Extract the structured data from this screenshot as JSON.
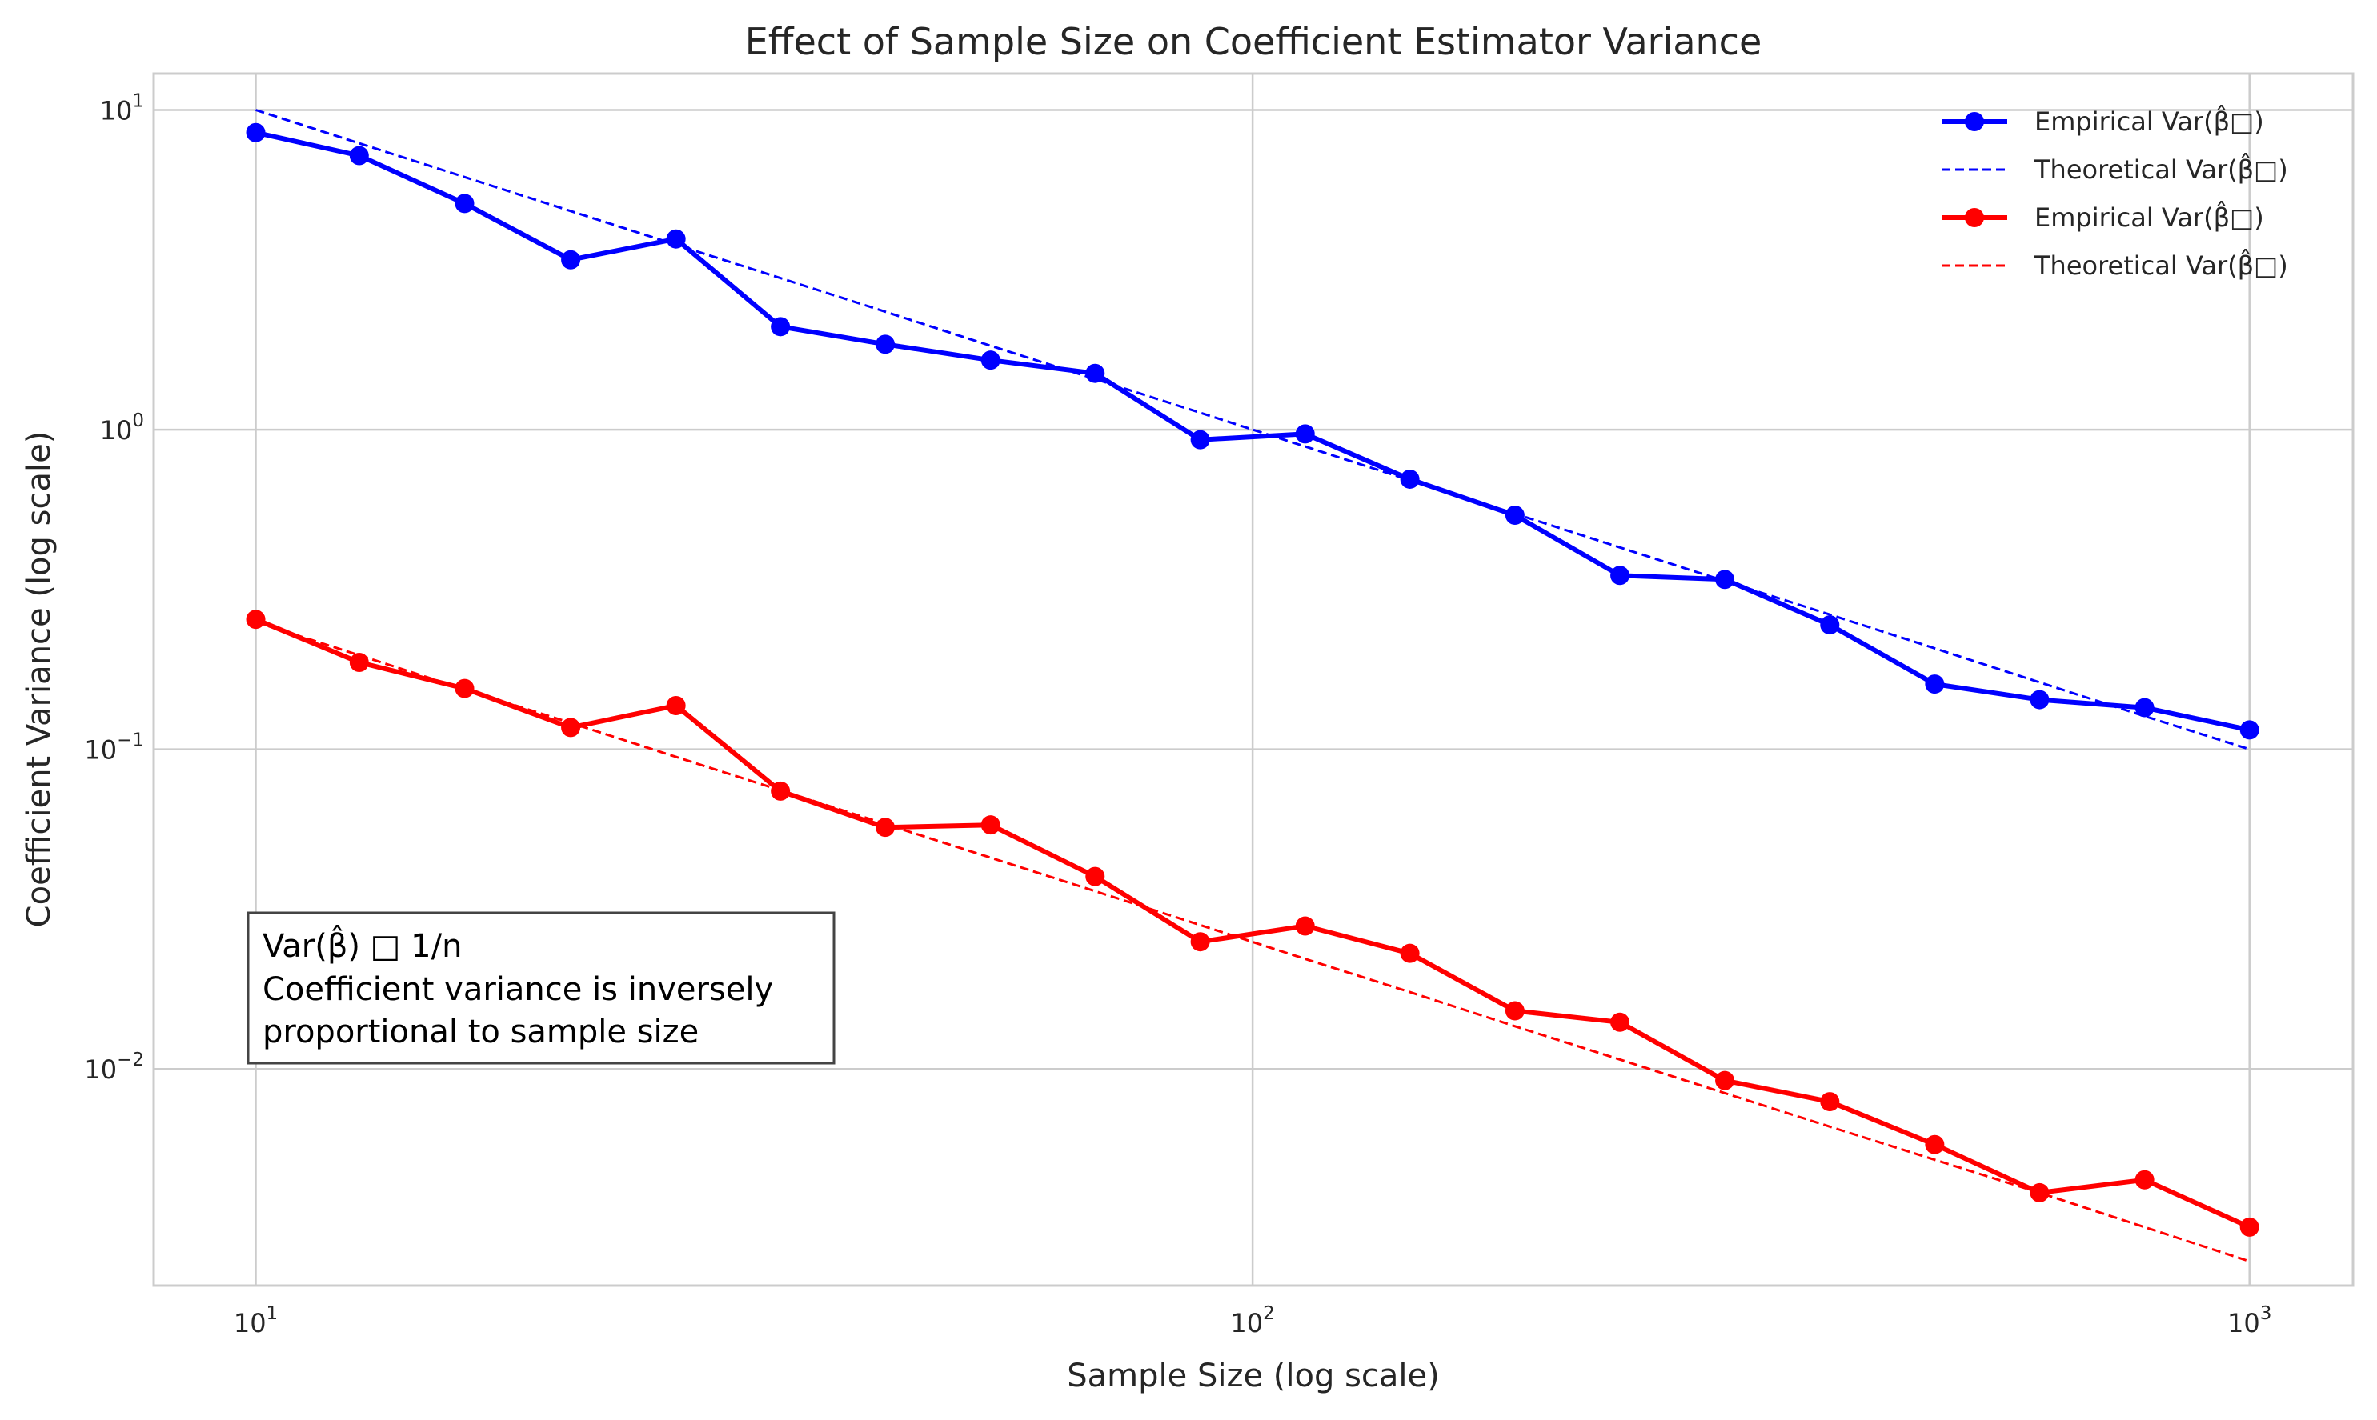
{
  "chart_data": {
    "type": "line",
    "title": "Effect of Sample Size on Coefficient Estimator Variance",
    "xlabel": "Sample Size (log scale)",
    "ylabel": "Coefficient Variance (log scale)",
    "xscale": "log",
    "yscale": "log",
    "xlim": [
      7.9,
      1270
    ],
    "ylim": [
      0.0021,
      13.0
    ],
    "x_ticks": [
      {
        "value": 10,
        "base": "10",
        "exp": "1"
      },
      {
        "value": 100,
        "base": "10",
        "exp": "2"
      },
      {
        "value": 1000,
        "base": "10",
        "exp": "3"
      }
    ],
    "y_ticks": [
      {
        "value": 10,
        "base": "10",
        "exp": "1"
      },
      {
        "value": 1,
        "base": "10",
        "exp": "0"
      },
      {
        "value": 0.1,
        "base": "10",
        "exp": "−1"
      },
      {
        "value": 0.01,
        "base": "10",
        "exp": "−2"
      }
    ],
    "grid": true,
    "legend_position": "top-right",
    "x": [
      10,
      12.7,
      16.2,
      20.7,
      26.4,
      33.6,
      42.8,
      54.6,
      69.5,
      88.6,
      112.9,
      143.8,
      183.3,
      233.6,
      297.6,
      379.3,
      483.3,
      615.8,
      784.8,
      1000
    ],
    "series": [
      {
        "name": "Empirical Var(β̂□)",
        "color": "#0000ff",
        "style": "solid-marker",
        "values": [
          8.5,
          7.2,
          5.1,
          3.4,
          3.95,
          2.1,
          1.85,
          1.65,
          1.5,
          0.93,
          0.97,
          0.7,
          0.54,
          0.35,
          0.34,
          0.245,
          0.16,
          0.143,
          0.135,
          0.115
        ]
      },
      {
        "name": "Theoretical Var(β̂□)",
        "color": "#0000ff",
        "style": "dashed",
        "values": [
          10.0,
          7.87,
          6.17,
          4.83,
          3.79,
          2.98,
          2.34,
          1.83,
          1.44,
          1.13,
          0.886,
          0.695,
          0.546,
          0.428,
          0.336,
          0.264,
          0.207,
          0.162,
          0.127,
          0.1
        ]
      },
      {
        "name": "Empirical Var(β̂□)",
        "color": "#ff0000",
        "style": "solid-marker",
        "values": [
          0.255,
          0.187,
          0.155,
          0.117,
          0.137,
          0.074,
          0.057,
          0.058,
          0.04,
          0.025,
          0.028,
          0.023,
          0.0152,
          0.014,
          0.0092,
          0.0079,
          0.0058,
          0.0041,
          0.0045,
          0.0032
        ]
      },
      {
        "name": "Theoretical Var(β̂□)",
        "color": "#ff0000",
        "style": "dashed",
        "values": [
          0.25,
          0.197,
          0.154,
          0.121,
          0.0947,
          0.0744,
          0.0584,
          0.0458,
          0.036,
          0.0282,
          0.0221,
          0.0174,
          0.0136,
          0.0107,
          0.0084,
          0.0066,
          0.0052,
          0.0041,
          0.0032,
          0.0025
        ]
      }
    ],
    "annotation": {
      "lines": [
        "Var(β̂) □ 1/n",
        "Coefficient variance is inversely",
        "proportional to sample size"
      ]
    }
  }
}
